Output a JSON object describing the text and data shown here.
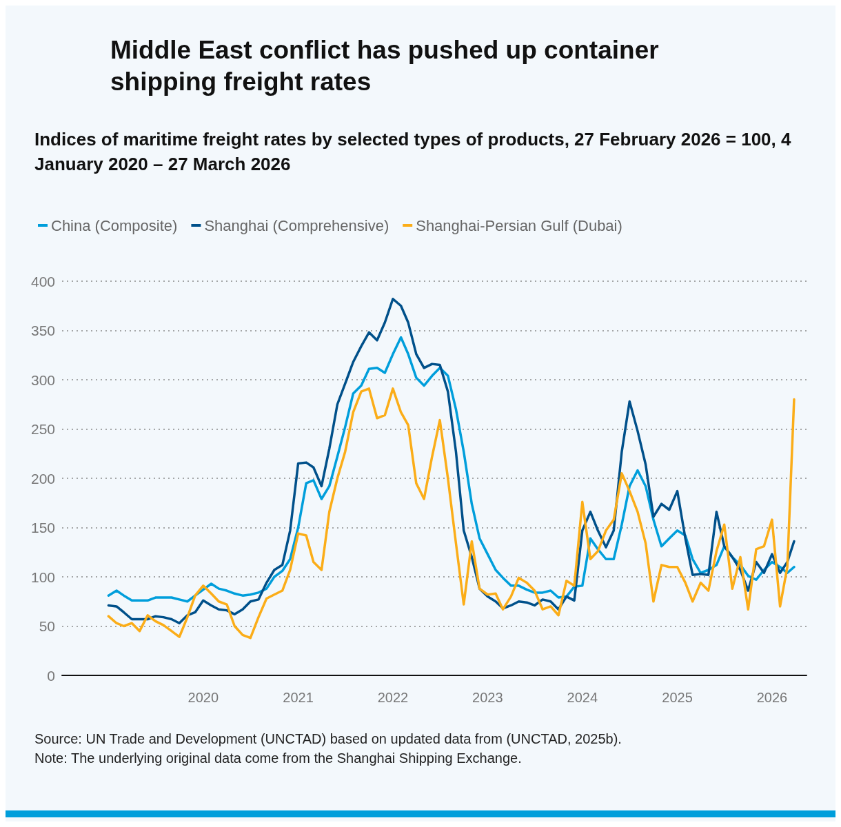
{
  "chart_data": {
    "type": "line",
    "title": "Middle East conflict has pushed up container shipping freight rates",
    "subtitle": "Indices of maritime freight rates by selected types of products, 27 February 2026 = 100, 4 January 2020 – 27 March 2026",
    "x": [
      "2019-01",
      "2019-02",
      "2019-03",
      "2019-04",
      "2019-05",
      "2019-06",
      "2019-07",
      "2019-08",
      "2019-09",
      "2019-10",
      "2019-11",
      "2019-12",
      "2020-01",
      "2020-02",
      "2020-03",
      "2020-04",
      "2020-05",
      "2020-06",
      "2020-07",
      "2020-08",
      "2020-09",
      "2020-10",
      "2020-11",
      "2020-12",
      "2021-01",
      "2021-02",
      "2021-03",
      "2021-04",
      "2021-05",
      "2021-06",
      "2021-07",
      "2021-08",
      "2021-09",
      "2021-10",
      "2021-11",
      "2021-12",
      "2022-01",
      "2022-02",
      "2022-03",
      "2022-04",
      "2022-05",
      "2022-06",
      "2022-07",
      "2022-08",
      "2022-09",
      "2022-10",
      "2022-11",
      "2022-12",
      "2023-01",
      "2023-02",
      "2023-03",
      "2023-04",
      "2023-05",
      "2023-06",
      "2023-07",
      "2023-08",
      "2023-09",
      "2023-10",
      "2023-11",
      "2023-12",
      "2024-01",
      "2024-02",
      "2024-03",
      "2024-04",
      "2024-05",
      "2024-06",
      "2024-07",
      "2024-08",
      "2024-09",
      "2024-10",
      "2024-11",
      "2024-12",
      "2025-01",
      "2025-02",
      "2025-03",
      "2025-04",
      "2025-05",
      "2025-06",
      "2025-07",
      "2025-08",
      "2025-09",
      "2025-10",
      "2025-11",
      "2025-12",
      "2026-01",
      "2026-02",
      "2026-03",
      "2026-03-27"
    ],
    "series": [
      {
        "name": "China (Composite)",
        "color": "#009edb",
        "values": [
          81,
          86,
          81,
          76,
          76,
          76,
          79,
          79,
          79,
          77,
          75,
          81,
          87,
          93,
          88,
          86,
          83,
          81,
          82,
          84,
          88,
          100,
          106,
          118,
          150,
          195,
          198,
          179,
          192,
          222,
          252,
          286,
          294,
          311,
          312,
          307,
          326,
          343,
          326,
          302,
          294,
          304,
          312,
          304,
          270,
          227,
          174,
          139,
          123,
          107,
          99,
          91,
          91,
          87,
          84,
          84,
          86,
          79,
          80,
          90,
          91,
          139,
          128,
          118,
          118,
          153,
          192,
          208,
          192,
          158,
          131,
          139,
          147,
          142,
          118,
          104,
          107,
          112,
          131,
          120,
          112,
          101,
          97,
          107,
          115,
          110,
          104,
          110
        ]
      },
      {
        "name": "Shanghai (Comprehensive)",
        "color": "#00508a",
        "values": [
          71,
          70,
          64,
          57,
          57,
          57,
          60,
          59,
          57,
          53,
          61,
          64,
          76,
          71,
          67,
          66,
          62,
          67,
          75,
          77,
          94,
          107,
          112,
          147,
          215,
          216,
          211,
          192,
          230,
          275,
          296,
          318,
          334,
          348,
          340,
          358,
          382,
          375,
          358,
          326,
          312,
          316,
          315,
          288,
          227,
          147,
          120,
          88,
          80,
          75,
          68,
          71,
          75,
          74,
          71,
          77,
          75,
          67,
          80,
          76,
          147,
          166,
          147,
          130,
          147,
          227,
          278,
          248,
          214,
          161,
          174,
          168,
          187,
          139,
          102,
          103,
          102,
          166,
          131,
          120,
          107,
          86,
          115,
          104,
          123,
          104,
          115,
          136
        ]
      },
      {
        "name": "Shanghai-Persian Gulf (Dubai)",
        "color": "#fbad18",
        "values": [
          60,
          53,
          50,
          53,
          45,
          61,
          55,
          51,
          45,
          39,
          59,
          81,
          91,
          83,
          75,
          72,
          50,
          41,
          38,
          59,
          78,
          82,
          86,
          107,
          144,
          142,
          115,
          107,
          166,
          200,
          227,
          267,
          288,
          291,
          261,
          264,
          291,
          267,
          254,
          195,
          179,
          222,
          259,
          200,
          134,
          72,
          136,
          88,
          82,
          83,
          67,
          80,
          99,
          94,
          86,
          67,
          70,
          61,
          96,
          91,
          176,
          118,
          126,
          147,
          158,
          205,
          187,
          166,
          134,
          75,
          112,
          110,
          110,
          94,
          75,
          94,
          86,
          126,
          153,
          88,
          120,
          67,
          128,
          131,
          158,
          70,
          110,
          280
        ]
      }
    ],
    "xlim": [
      "2018-07-06",
      "2026-05-14"
    ],
    "xticks": [
      "2020",
      "2021",
      "2022",
      "2023",
      "2024",
      "2025",
      "2026"
    ],
    "ylim": [
      0,
      400
    ],
    "yticks": [
      0,
      50,
      100,
      150,
      200,
      250,
      300,
      350,
      400
    ],
    "grid": "y",
    "legend": "top left",
    "line_style": "solid",
    "annotations": [
      "Source: UN Trade and Development (UNCTAD) based on updated data from (UNCTAD, 2025b).",
      "Note: The underlying original data come from the Shanghai Shipping Exchange."
    ]
  }
}
